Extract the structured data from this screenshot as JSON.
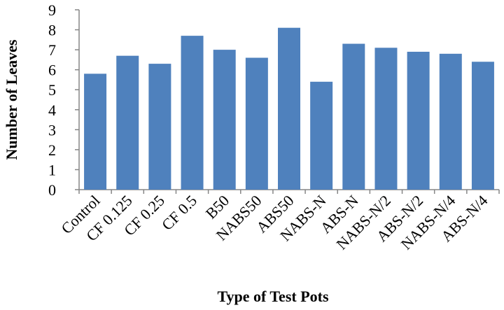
{
  "chart_data": {
    "type": "bar",
    "categories": [
      "Control",
      "CF 0.125",
      "CF 0.25",
      "CF 0.5",
      "B50",
      "NABS50",
      "ABS50",
      "NABS-N",
      "ABS-N",
      "NABS-N/2",
      "ABS-N/2",
      "NABS-N/4",
      "ABS-N/4"
    ],
    "values": [
      5.8,
      6.7,
      6.3,
      7.7,
      7.0,
      6.6,
      8.1,
      5.4,
      7.3,
      7.1,
      6.9,
      6.8,
      6.4
    ],
    "xlabel": "Type of Test Pots",
    "ylabel": "Number of Leaves",
    "ylim": [
      0,
      9
    ],
    "yticks": [
      0,
      1,
      2,
      3,
      4,
      5,
      6,
      7,
      8,
      9
    ],
    "grid": false,
    "bar_color": "#4f81bd",
    "axis_color": "#868686"
  }
}
